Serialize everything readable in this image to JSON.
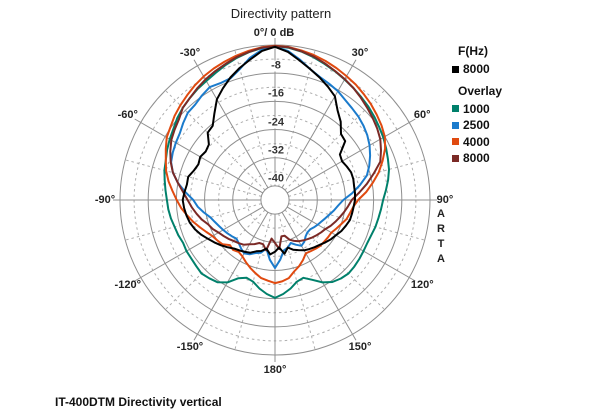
{
  "title": "Directivity pattern",
  "caption": "IT-400DTM Directivity vertical",
  "arta_label": "A\nR\nT\nA",
  "legend": {
    "f_title": "F(Hz)",
    "f_items": [
      {
        "label": "8000",
        "color": "#000000"
      }
    ],
    "overlay_title": "Overlay",
    "overlay_items": [
      {
        "label": "1000",
        "color": "#00806B"
      },
      {
        "label": "2500",
        "color": "#1B7BCC"
      },
      {
        "label": "4000",
        "color": "#E04A10"
      },
      {
        "label": "8000",
        "color": "#7B2A26"
      }
    ]
  },
  "chart_data": {
    "type": "line",
    "subtype": "polar-directivity",
    "title": "Directivity pattern",
    "top_label": "0°/ 0 dB",
    "units": {
      "angle": "deg",
      "level": "dB"
    },
    "scale": {
      "outer_db": 0,
      "center_db": -44,
      "solid_circle_step_db": 8,
      "dashed_circle_step_db": 4,
      "solid_radial_step_deg": 30,
      "dashed_radial_step_deg": 15
    },
    "db_labels": [
      {
        "db": -8,
        "text": "-8"
      },
      {
        "db": -16,
        "text": "-16"
      },
      {
        "db": -24,
        "text": "-24"
      },
      {
        "db": -32,
        "text": "-32"
      },
      {
        "db": -40,
        "text": "-40"
      }
    ],
    "angle_labels": [
      {
        "angle": -30,
        "text": "-30°"
      },
      {
        "angle": 30,
        "text": "30°"
      },
      {
        "angle": -60,
        "text": "-60°"
      },
      {
        "angle": 60,
        "text": "60°"
      },
      {
        "angle": -90,
        "text": "-90°"
      },
      {
        "angle": 90,
        "text": "90°"
      },
      {
        "angle": -120,
        "text": "-120°"
      },
      {
        "angle": 120,
        "text": "120°"
      },
      {
        "angle": -150,
        "text": "-150°"
      },
      {
        "angle": 150,
        "text": "150°"
      },
      {
        "angle": 180,
        "text": "180°"
      }
    ],
    "angle_start_deg": -180,
    "angle_step_deg": 5,
    "series": [
      {
        "name": "1000",
        "group": "Overlay",
        "color": "#00806B",
        "values": [
          -16.2,
          -17.2,
          -18.5,
          -20,
          -20.5,
          -19.5,
          -17,
          -15.5,
          -15,
          -14.5,
          -14.8,
          -15,
          -15,
          -15.2,
          -14.8,
          -14.5,
          -14,
          -13.6,
          -13.3,
          -12.8,
          -12.2,
          -11.5,
          -11,
          -10.2,
          -9.5,
          -8.8,
          -7.8,
          -7,
          -6.3,
          -5.6,
          -5,
          -4.2,
          -3.2,
          -2.2,
          -1.4,
          -0.7,
          -0.3,
          -0.6,
          -1.2,
          -2,
          -2.9,
          -3.7,
          -4.5,
          -5.2,
          -5.9,
          -6.5,
          -7.2,
          -7.9,
          -8.5,
          -9.2,
          -9.9,
          -10.5,
          -11.4,
          -12.4,
          -13.3,
          -13.8,
          -14.2,
          -14.5,
          -14.9,
          -15.1,
          -15,
          -14.8,
          -14.6,
          -14.5,
          -14.9,
          -15.6,
          -17,
          -19,
          -20.5,
          -20,
          -18.5,
          -17.2,
          -16.2
        ]
      },
      {
        "name": "2500",
        "group": "Overlay",
        "color": "#1B7BCC",
        "values": [
          -24.7,
          -27,
          -30,
          -28.5,
          -28,
          -27,
          -26.5,
          -27.2,
          -28,
          -28.5,
          -28,
          -27.5,
          -27,
          -26.5,
          -25.8,
          -25,
          -23.5,
          -22,
          -20.8,
          -18.5,
          -16,
          -14,
          -12.6,
          -12,
          -11.5,
          -11,
          -10,
          -9,
          -8.7,
          -7.8,
          -7,
          -7.4,
          -7.2,
          -5.5,
          -3,
          -1.2,
          -0.5,
          -1.5,
          -3.5,
          -5.5,
          -6.8,
          -7.6,
          -8.3,
          -9.3,
          -10,
          -10.5,
          -11.2,
          -12,
          -13,
          -14.2,
          -15.5,
          -17,
          -19.5,
          -22,
          -24.6,
          -26,
          -27,
          -28,
          -28.8,
          -29.5,
          -30,
          -30.5,
          -31,
          -31,
          -30.5,
          -29.5,
          -29,
          -30,
          -31,
          -30,
          -29.5,
          -27,
          -24.7
        ]
      },
      {
        "name": "4000",
        "group": "Overlay",
        "color": "#E04A10",
        "values": [
          -20.4,
          -21,
          -21.5,
          -22.5,
          -23.5,
          -24.5,
          -25.5,
          -26,
          -25.5,
          -25.9,
          -24.5,
          -24,
          -23.5,
          -22.5,
          -21.3,
          -20,
          -18.7,
          -17.3,
          -16.1,
          -14.8,
          -13.3,
          -12,
          -11,
          -9.8,
          -8.5,
          -7.8,
          -6.8,
          -6,
          -5.2,
          -4.3,
          -3.5,
          -2.8,
          -2.2,
          -1.6,
          -1,
          -0.5,
          -0.2,
          -0.4,
          -0.9,
          -1.4,
          -2,
          -2.7,
          -3.4,
          -4,
          -4.8,
          -5.5,
          -6.3,
          -7.1,
          -8,
          -9.5,
          -11.5,
          -13.5,
          -15.8,
          -18,
          -20.4,
          -21.7,
          -22.4,
          -23,
          -24,
          -24.8,
          -25.5,
          -25.6,
          -25.7,
          -25.7,
          -26,
          -26.3,
          -26.5,
          -25.2,
          -24,
          -23,
          -21.5,
          -20.8,
          -20.4
        ]
      },
      {
        "name": "8000",
        "group": "Overlay",
        "color": "#7B2A26",
        "values": [
          -31.8,
          -33,
          -29.5,
          -31,
          -31,
          -30.2,
          -29.5,
          -28.5,
          -28,
          -27.5,
          -26.8,
          -26.2,
          -25.5,
          -24.5,
          -23.8,
          -22.5,
          -21.4,
          -20.3,
          -19.2,
          -17.8,
          -16,
          -14,
          -12.5,
          -11.2,
          -10,
          -9.2,
          -8.4,
          -7,
          -6.3,
          -5.4,
          -4.5,
          -3.7,
          -2.9,
          -2,
          -1.3,
          -0.6,
          -0.3,
          -0.5,
          -1.1,
          -1.8,
          -2.7,
          -3.6,
          -4.4,
          -5.2,
          -6.1,
          -7,
          -7.8,
          -8.6,
          -9.5,
          -10.8,
          -12.2,
          -15,
          -17.5,
          -20,
          -22.2,
          -23.2,
          -24.1,
          -25,
          -25.8,
          -26.6,
          -27.5,
          -28,
          -28.5,
          -29,
          -29.5,
          -30,
          -30.5,
          -31.2,
          -32,
          -33.5,
          -33.5,
          -30,
          -31.8
        ]
      },
      {
        "name": "8000",
        "group": "F(Hz)",
        "color": "#000000",
        "values": [
          -29.3,
          -28.5,
          -30,
          -29,
          -28.5,
          -27.5,
          -27,
          -26.5,
          -26,
          -25,
          -24,
          -23,
          -22,
          -20.8,
          -19.8,
          -19,
          -18.5,
          -18.1,
          -17.8,
          -18.2,
          -18.6,
          -18.5,
          -19.5,
          -20,
          -19.5,
          -20,
          -19.5,
          -17,
          -16.5,
          -14,
          -11,
          -9,
          -7,
          -5.2,
          -3.5,
          -1.5,
          -0.5,
          -1.8,
          -3.8,
          -5.5,
          -7,
          -8.5,
          -10,
          -13,
          -15,
          -17.5,
          -18,
          -21.5,
          -22,
          -21.5,
          -21,
          -21,
          -21.2,
          -21.2,
          -21.3,
          -21.6,
          -21.8,
          -22,
          -22.6,
          -23.2,
          -24,
          -24.6,
          -25.3,
          -26,
          -26.5,
          -27,
          -27.5,
          -28.3,
          -29,
          -30,
          -28.5,
          -30.5,
          -29.3
        ]
      }
    ],
    "legend_position": "right",
    "grid": true
  }
}
